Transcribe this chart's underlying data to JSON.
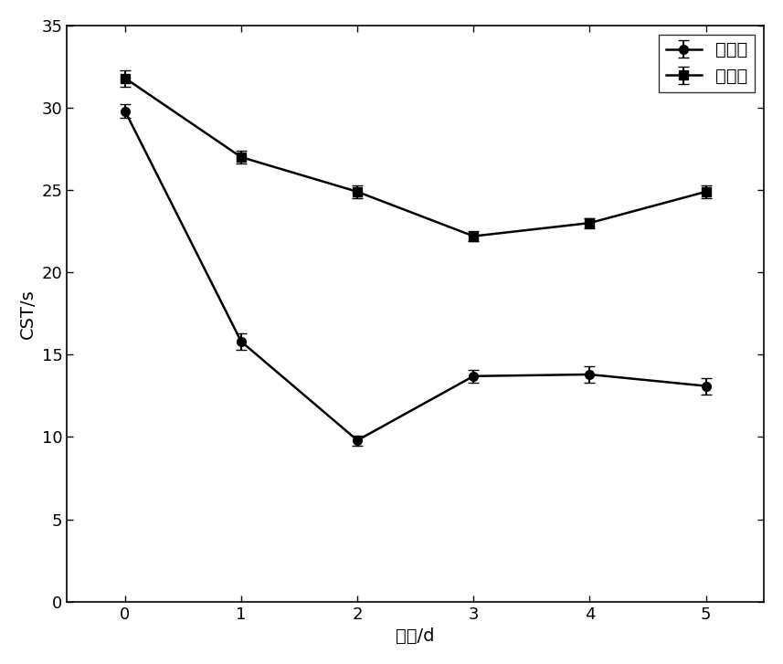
{
  "x": [
    0,
    1,
    2,
    3,
    4,
    5
  ],
  "jiajun_y": [
    29.8,
    15.8,
    9.8,
    13.7,
    13.8,
    13.1
  ],
  "jiajun_err": [
    0.4,
    0.5,
    0.3,
    0.4,
    0.5,
    0.5
  ],
  "duizhao_y": [
    31.8,
    27.0,
    24.9,
    22.2,
    23.0,
    24.9
  ],
  "duizhao_err": [
    0.5,
    0.4,
    0.4,
    0.3,
    0.3,
    0.4
  ],
  "xlabel": "时间/d",
  "ylabel": "CST/s",
  "ylim": [
    0,
    35
  ],
  "yticks": [
    0,
    5,
    10,
    15,
    20,
    25,
    30,
    35
  ],
  "xticks": [
    0,
    1,
    2,
    3,
    4,
    5
  ],
  "legend_jiajun": "加菌组",
  "legend_duizhao": "对照组",
  "line_color": "#000000",
  "marker_circle": "o",
  "marker_square": "s",
  "markersize": 7,
  "linewidth": 1.8,
  "capsize": 4,
  "elinewidth": 1.5,
  "legend_fontsize": 14,
  "axis_fontsize": 14,
  "tick_fontsize": 13
}
